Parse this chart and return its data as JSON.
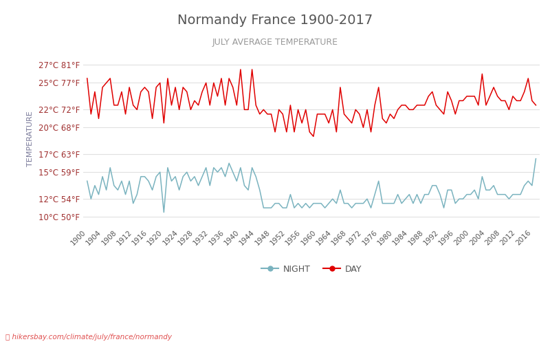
{
  "title": "Normandy France 1900-2017",
  "subtitle": "JULY AVERAGE TEMPERATURE",
  "ylabel_label": "TEMPERATURE",
  "years": [
    1900,
    1901,
    1902,
    1903,
    1904,
    1905,
    1906,
    1907,
    1908,
    1909,
    1910,
    1911,
    1912,
    1913,
    1914,
    1915,
    1916,
    1917,
    1918,
    1919,
    1920,
    1921,
    1922,
    1923,
    1924,
    1925,
    1926,
    1927,
    1928,
    1929,
    1930,
    1931,
    1932,
    1933,
    1934,
    1935,
    1936,
    1937,
    1938,
    1939,
    1940,
    1941,
    1942,
    1943,
    1944,
    1945,
    1946,
    1947,
    1948,
    1949,
    1950,
    1951,
    1952,
    1953,
    1954,
    1955,
    1956,
    1957,
    1958,
    1959,
    1960,
    1961,
    1962,
    1963,
    1964,
    1965,
    1966,
    1967,
    1968,
    1969,
    1970,
    1971,
    1972,
    1973,
    1974,
    1975,
    1976,
    1977,
    1978,
    1979,
    1980,
    1981,
    1982,
    1983,
    1984,
    1985,
    1986,
    1987,
    1988,
    1989,
    1990,
    1991,
    1992,
    1993,
    1994,
    1995,
    1996,
    1997,
    1998,
    1999,
    2000,
    2001,
    2002,
    2003,
    2004,
    2005,
    2006,
    2007,
    2008,
    2009,
    2010,
    2011,
    2012,
    2013,
    2014,
    2015,
    2016,
    2017
  ],
  "day_temps": [
    25.5,
    21.5,
    24.0,
    21.0,
    24.5,
    25.0,
    25.5,
    22.5,
    22.5,
    24.0,
    21.5,
    24.5,
    22.5,
    22.0,
    24.0,
    24.5,
    24.0,
    21.0,
    24.5,
    25.0,
    20.5,
    25.5,
    22.5,
    24.5,
    22.0,
    24.5,
    24.0,
    22.0,
    23.0,
    22.5,
    24.0,
    25.0,
    22.5,
    25.0,
    23.5,
    25.5,
    22.5,
    25.5,
    24.5,
    22.5,
    26.5,
    22.0,
    22.0,
    26.5,
    22.5,
    21.5,
    22.0,
    21.5,
    21.5,
    19.5,
    22.0,
    21.5,
    19.5,
    22.5,
    19.5,
    22.0,
    20.5,
    22.0,
    19.5,
    19.0,
    21.5,
    21.5,
    21.5,
    20.5,
    22.0,
    19.5,
    24.5,
    21.5,
    21.0,
    20.5,
    22.0,
    21.5,
    20.0,
    22.0,
    19.5,
    22.5,
    24.5,
    21.0,
    20.5,
    21.5,
    21.0,
    22.0,
    22.5,
    22.5,
    22.0,
    22.0,
    22.5,
    22.5,
    22.5,
    23.5,
    24.0,
    22.5,
    22.0,
    21.5,
    24.0,
    23.0,
    21.5,
    23.0,
    23.0,
    23.5,
    23.5,
    23.5,
    22.5,
    26.0,
    22.5,
    23.5,
    24.5,
    23.5,
    23.0,
    23.0,
    22.0,
    23.5,
    23.0,
    23.0,
    24.0,
    25.5,
    23.0,
    22.5
  ],
  "night_temps": [
    14.0,
    12.0,
    13.5,
    12.5,
    14.5,
    13.0,
    15.5,
    13.5,
    13.0,
    14.0,
    12.5,
    14.0,
    11.5,
    12.5,
    14.5,
    14.5,
    14.0,
    13.0,
    14.5,
    15.0,
    10.5,
    15.5,
    14.0,
    14.5,
    13.0,
    14.5,
    15.0,
    14.0,
    14.5,
    13.5,
    14.5,
    15.5,
    13.5,
    15.5,
    15.0,
    15.5,
    14.5,
    16.0,
    15.0,
    14.0,
    15.5,
    13.5,
    13.0,
    15.5,
    14.5,
    13.0,
    11.0,
    11.0,
    11.0,
    11.5,
    11.5,
    11.0,
    11.0,
    12.5,
    11.0,
    11.5,
    11.0,
    11.5,
    11.0,
    11.5,
    11.5,
    11.5,
    11.0,
    11.5,
    12.0,
    11.5,
    13.0,
    11.5,
    11.5,
    11.0,
    11.5,
    11.5,
    11.5,
    12.0,
    11.0,
    12.5,
    14.0,
    11.5,
    11.5,
    11.5,
    11.5,
    12.5,
    11.5,
    12.0,
    12.5,
    11.5,
    12.5,
    11.5,
    12.5,
    12.5,
    13.5,
    13.5,
    12.5,
    11.0,
    13.0,
    13.0,
    11.5,
    12.0,
    12.0,
    12.5,
    12.5,
    13.0,
    12.0,
    14.5,
    13.0,
    13.0,
    13.5,
    12.5,
    12.5,
    12.5,
    12.0,
    12.5,
    12.5,
    12.5,
    13.5,
    14.0,
    13.5,
    16.5
  ],
  "day_color": "#e00000",
  "night_color": "#7ab3bf",
  "yticks_celsius": [
    10,
    12,
    15,
    17,
    20,
    22,
    25,
    27
  ],
  "yticks_fahrenheit": [
    50,
    54,
    59,
    63,
    68,
    72,
    77,
    81
  ],
  "ylim": [
    9,
    28.5
  ],
  "xlim": [
    1899,
    2018
  ],
  "background_color": "#ffffff",
  "grid_color": "#e0e0e0",
  "title_color": "#555555",
  "subtitle_color": "#999999",
  "tick_label_color": "#a03030",
  "ylabel_color": "#7a7a9a",
  "xtick_color": "#555555",
  "footer_text": "hikersbay.com/climate/july/france/normandy",
  "legend_night": "NIGHT",
  "legend_day": "DAY"
}
